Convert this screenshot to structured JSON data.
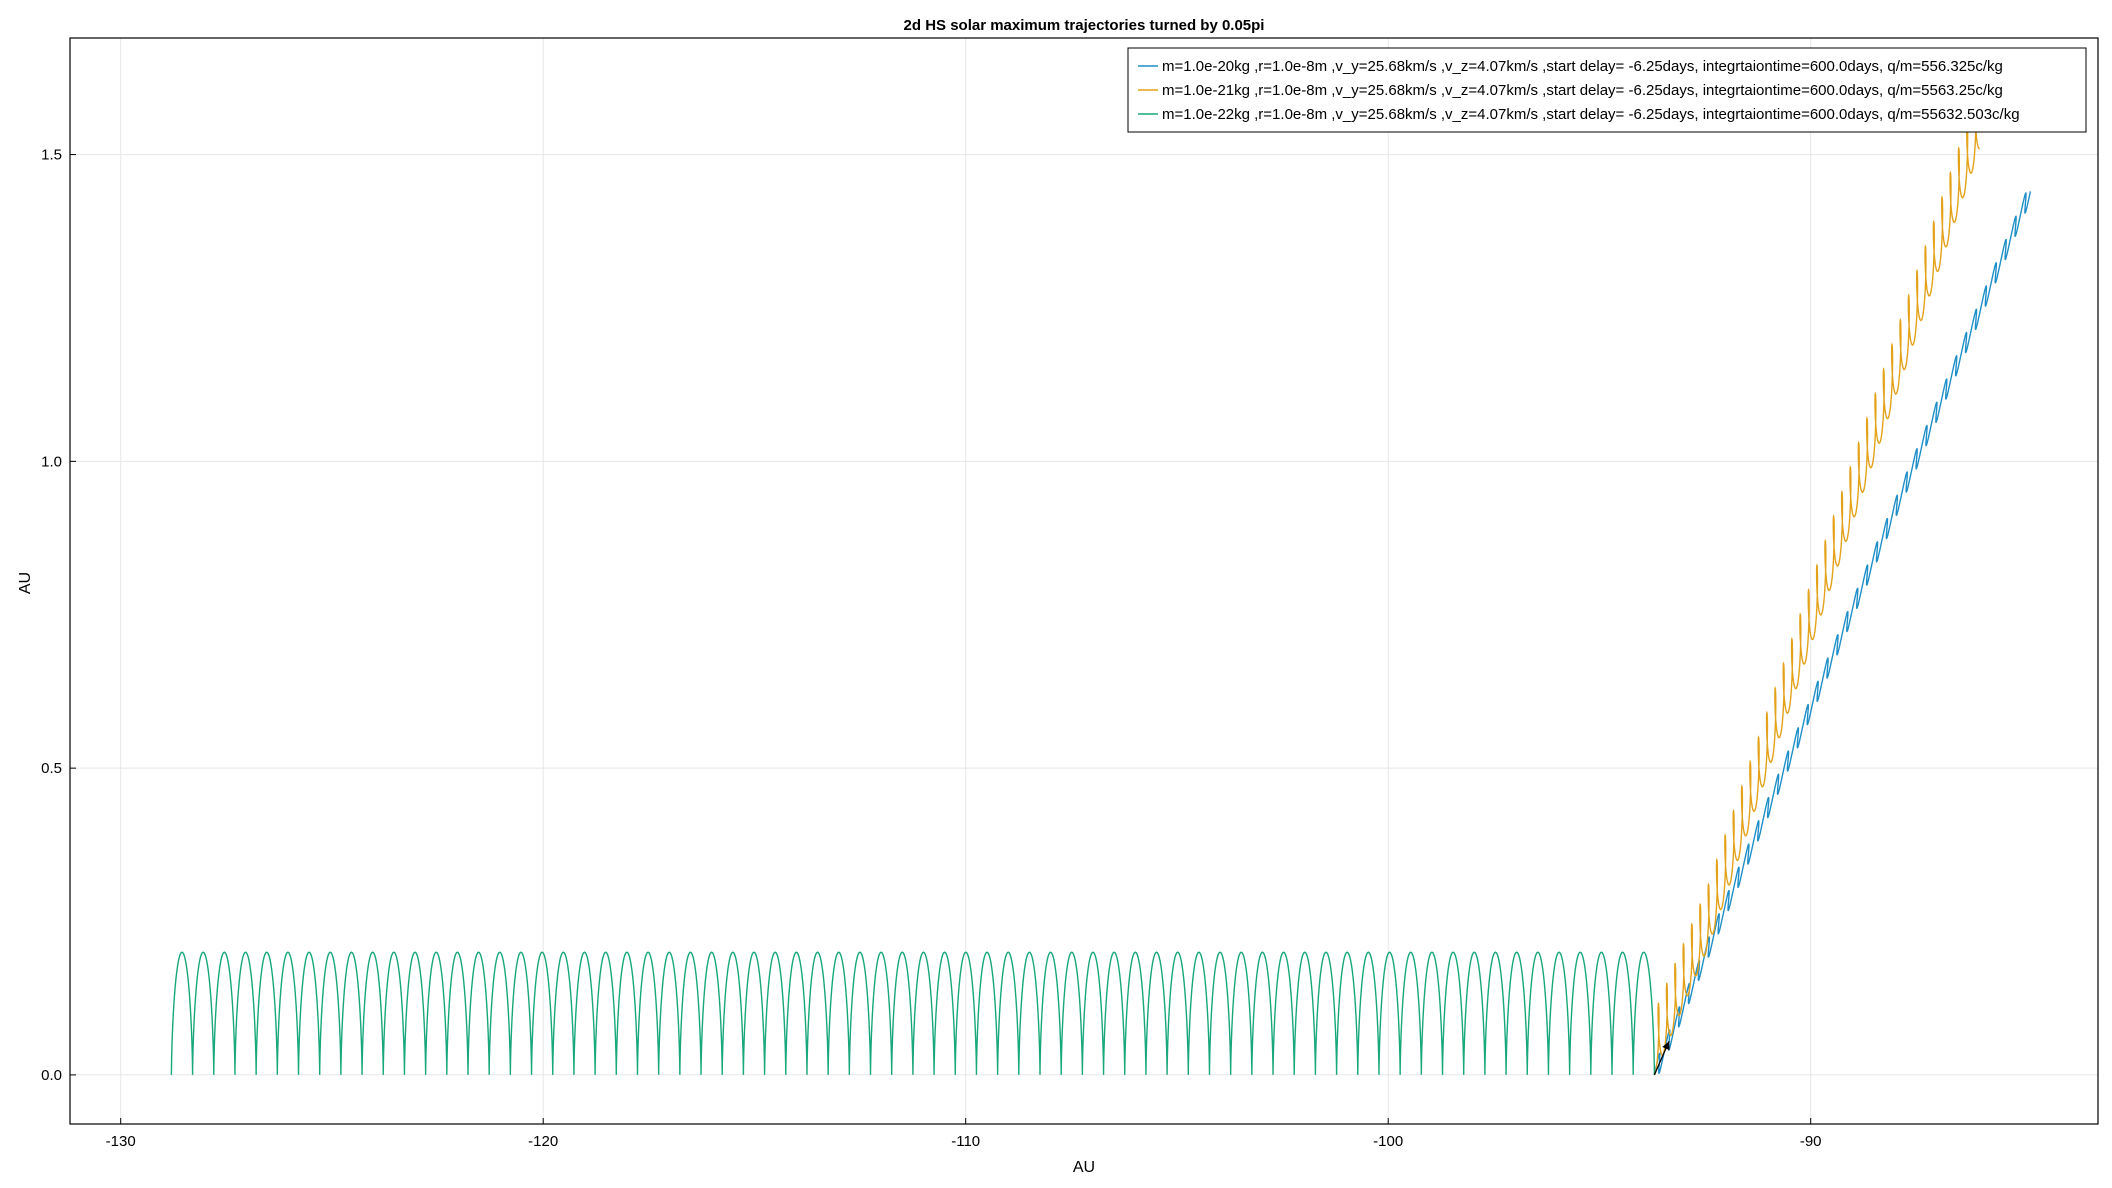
{
  "chart_data": {
    "type": "line",
    "title": "2d HS solar maximum trajectories turned by 0.05pi",
    "xlabel": "AU",
    "ylabel": "AU",
    "xlim": [
      -131.2,
      -83.2
    ],
    "ylim": [
      -0.08,
      1.69
    ],
    "xticks": [
      -130,
      -120,
      -110,
      -100,
      -90
    ],
    "xtick_labels": [
      "-130",
      "-120",
      "-110",
      "-100",
      "-90"
    ],
    "yticks": [
      0.0,
      0.5,
      1.0,
      1.5
    ],
    "ytick_labels": [
      "0.0",
      "0.5",
      "1.0",
      "1.5"
    ],
    "grid": true,
    "legend_position": "top-right",
    "series": [
      {
        "name": "m=1.0e-20kg ,r=1.0e-8m ,v_y=25.68km/s ,v_z=4.07km/s ,start delay= -6.25days, integrtaiontime=600.0days, q/m=556.325c/kg",
        "color": "#1f8fc8",
        "kind": "wavy-line",
        "start": [
          -93.7,
          0.0
        ],
        "end": [
          -84.8,
          1.44
        ],
        "cycles": 38,
        "amplitude_au": 0.025
      },
      {
        "name": "m=1.0e-21kg ,r=1.0e-8m ,v_y=25.68km/s ,v_z=4.07km/s ,start delay= -6.25days, integrtaiontime=600.0days, q/m=5563.25c/kg",
        "color": "#e3a21a",
        "kind": "oscillating-line",
        "start": [
          -93.7,
          0.0
        ],
        "end": [
          -86.0,
          1.56
        ],
        "cycles": 39,
        "amplitude_au": 0.1
      },
      {
        "name": "m=1.0e-22kg ,r=1.0e-8m ,v_y=25.68km/s ,v_z=4.07km/s ,start delay= -6.25days, integrtaiontime=600.0days, q/m=55632.503c/kg",
        "color": "#17a77a",
        "kind": "cycloid",
        "x_start": -93.7,
        "x_end": -128.8,
        "arches": 70,
        "y_max": 0.2
      }
    ],
    "annotations": [
      {
        "type": "arrow",
        "from": [
          -93.7,
          0.0
        ],
        "to": [
          -93.35,
          0.055
        ],
        "color": "#000000"
      }
    ]
  }
}
